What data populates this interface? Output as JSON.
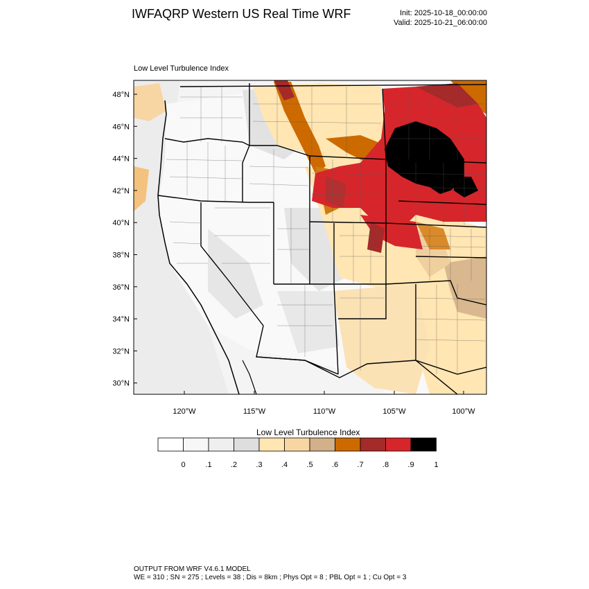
{
  "header": {
    "title": "IWFAQRP Western US Real Time WRF",
    "init": "Init: 2025-10-18_00:00:00",
    "valid": "Valid: 2025-10-21_06:00:00"
  },
  "map": {
    "label": "Low Level Turbulence Index",
    "lat_labels": [
      "48°N",
      "46°N",
      "44°N",
      "42°N",
      "40°N",
      "38°N",
      "36°N",
      "34°N",
      "32°N",
      "30°N"
    ],
    "lon_labels": [
      "120°W",
      "115°W",
      "110°W",
      "105°W",
      "100°W"
    ]
  },
  "colorbar": {
    "title": "Low Level Turbulence Index",
    "tick_labels": [
      "0",
      ".1",
      ".2",
      ".3",
      ".4",
      ".5",
      ".6",
      ".7",
      ".8",
      ".9",
      "1"
    ],
    "colors": [
      "#ffffff",
      "#f7f7f7",
      "#efefef",
      "#dedede",
      "#ffe6b3",
      "#f8d6a4",
      "#d1b08a",
      "#cc6a00",
      "#a52a2a",
      "#d6262b",
      "#000000"
    ]
  },
  "footer": {
    "line1": "OUTPUT FROM WRF V4.6.1 MODEL",
    "line2": "WE = 310 ; SN = 275 ; Levels = 38 ; Dis = 8km ; Phys Opt = 8 ; PBL Opt = 1 ; Cu Opt = 3"
  }
}
